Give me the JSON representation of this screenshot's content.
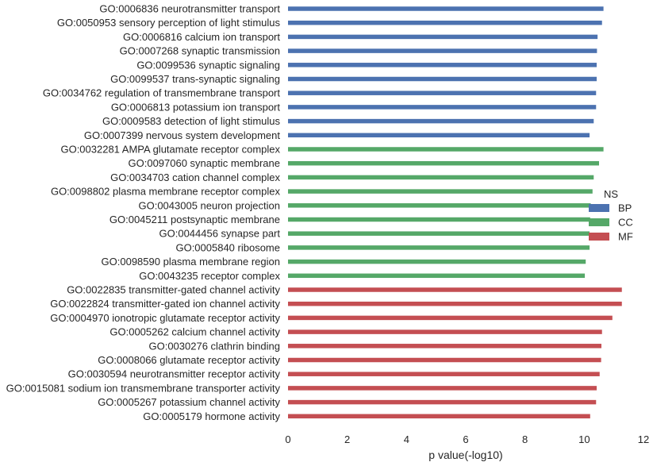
{
  "chart_data": {
    "type": "bar",
    "orientation": "horizontal",
    "categories": [
      "GO:0006836 neurotransmitter transport",
      "GO:0050953 sensory perception of light stimulus",
      "GO:0006816 calcium ion transport",
      "GO:0007268 synaptic transmission",
      "GO:0099536 synaptic signaling",
      "GO:0099537 trans-synaptic signaling",
      "GO:0034762 regulation of transmembrane transport",
      "GO:0006813 potassium ion transport",
      "GO:0009583 detection of light stimulus",
      "GO:0007399 nervous system development",
      "GO:0032281 AMPA glutamate receptor complex",
      "GO:0097060 synaptic membrane",
      "GO:0034703 cation channel complex",
      "GO:0098802 plasma membrane receptor complex",
      "GO:0043005 neuron projection",
      "GO:0045211 postsynaptic membrane",
      "GO:0044456 synapse part",
      "GO:0005840 ribosome",
      "GO:0098590 plasma membrane region",
      "GO:0043235 receptor complex",
      "GO:0022835 transmitter-gated channel activity",
      "GO:0022824 transmitter-gated ion channel activity",
      "GO:0004970 ionotropic glutamate receptor activity",
      "GO:0005262 calcium channel activity",
      "GO:0030276 clathrin binding",
      "GO:0008066 glutamate receptor activity",
      "GO:0030594 neurotransmitter receptor activity",
      "GO:0015081 sodium ion transmembrane transporter activity",
      "GO:0005267 potassium channel activity",
      "GO:0005179 hormone activity"
    ],
    "values": [
      10.65,
      10.6,
      10.45,
      10.43,
      10.42,
      10.42,
      10.4,
      10.4,
      10.32,
      10.18,
      10.65,
      10.5,
      10.32,
      10.28,
      10.22,
      10.2,
      10.18,
      10.18,
      10.05,
      10.02,
      11.27,
      11.27,
      10.95,
      10.6,
      10.58,
      10.57,
      10.52,
      10.42,
      10.4,
      10.2
    ],
    "groups": [
      "BP",
      "BP",
      "BP",
      "BP",
      "BP",
      "BP",
      "BP",
      "BP",
      "BP",
      "BP",
      "CC",
      "CC",
      "CC",
      "CC",
      "CC",
      "CC",
      "CC",
      "CC",
      "CC",
      "CC",
      "MF",
      "MF",
      "MF",
      "MF",
      "MF",
      "MF",
      "MF",
      "MF",
      "MF",
      "MF"
    ],
    "xlabel": "p value(-log10)",
    "ylabel": "",
    "xlim": [
      0,
      12
    ],
    "xticks": [
      0,
      2,
      4,
      6,
      8,
      10,
      12
    ],
    "grid": false,
    "legend": {
      "title": "NS",
      "placement": "right",
      "entries": [
        {
          "name": "BP",
          "color": "#4C72B0"
        },
        {
          "name": "CC",
          "color": "#55A868"
        },
        {
          "name": "MF",
          "color": "#C44E52"
        }
      ]
    }
  }
}
